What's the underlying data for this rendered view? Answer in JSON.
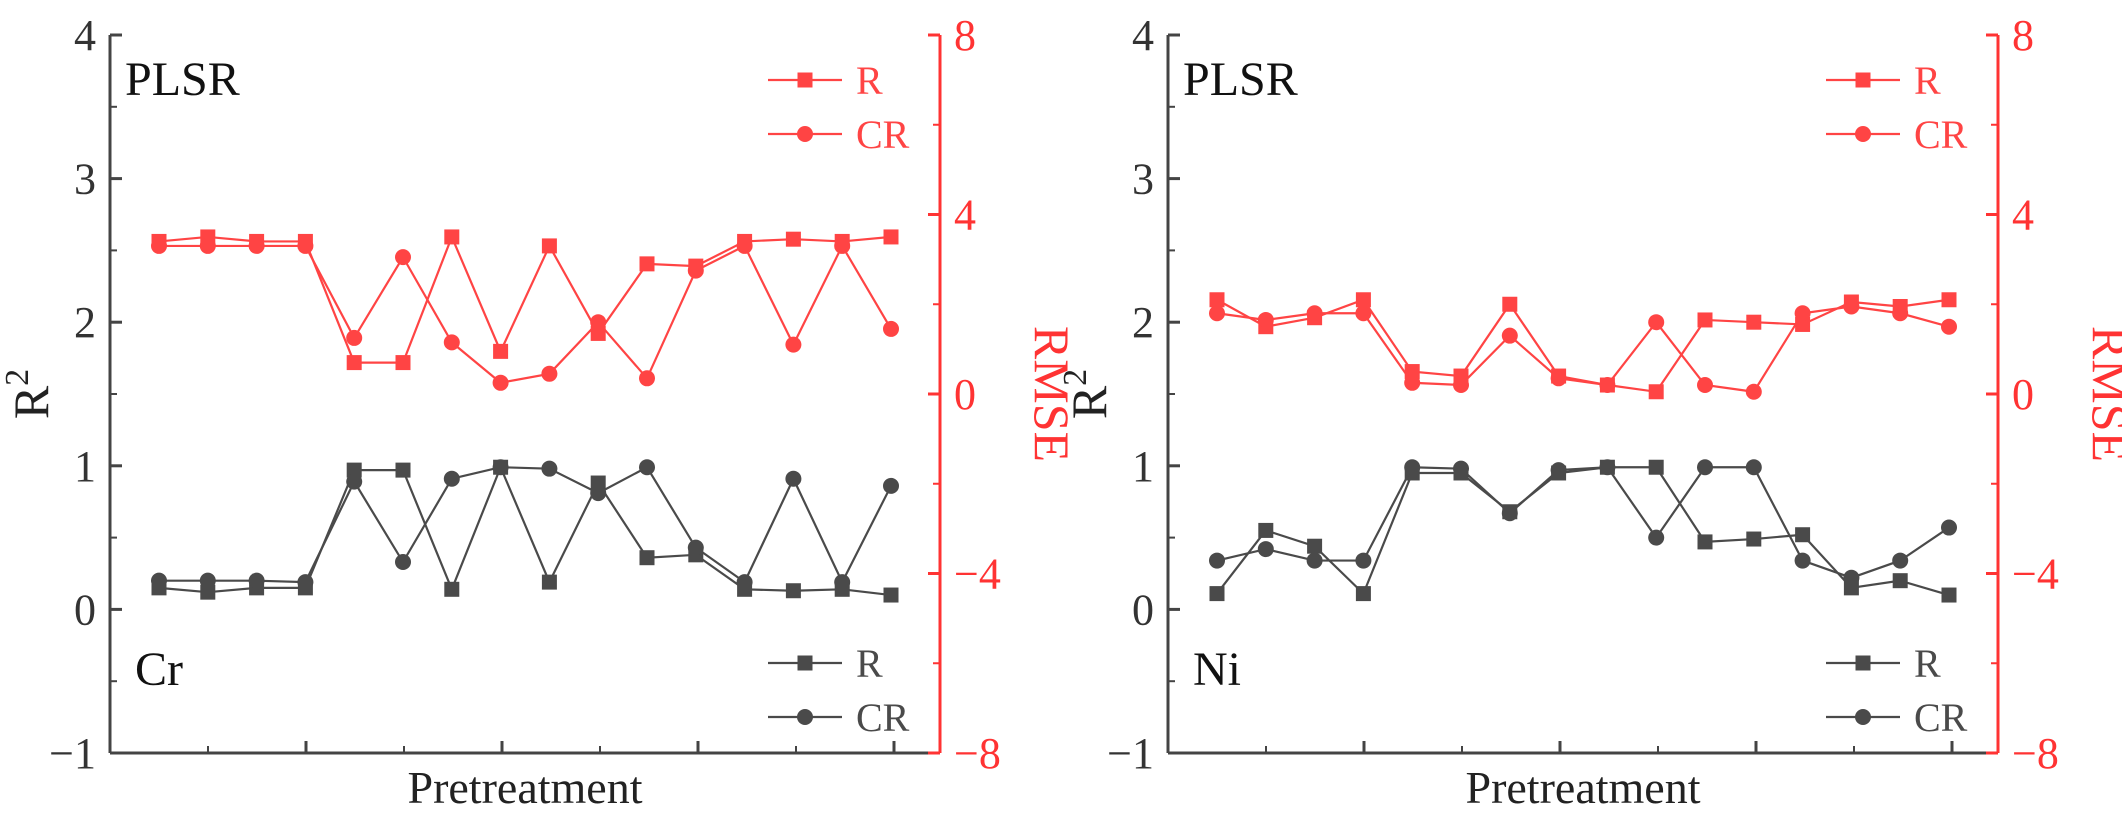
{
  "colors": {
    "black": "#4a4a4a",
    "red": "#ff4444",
    "axis_left": "#444444",
    "axis_right": "#ff3333"
  },
  "chart_data": [
    {
      "type": "line",
      "panel": "left",
      "title": "PLSR",
      "element": "Cr",
      "xlabel": "Pretreatment",
      "ylabel_left": "R",
      "ylabel_left_superscript": "2",
      "ylabel_right": "RMSE",
      "ylim_left": [
        -1,
        4
      ],
      "ylim_right": [
        -8,
        8
      ],
      "yticks_left": [
        "−1",
        "0",
        "1",
        "2",
        "3",
        "4"
      ],
      "yticks_right": [
        "−8",
        "−4",
        "0",
        "4",
        "8"
      ],
      "legend_top": {
        "series": [
          "R",
          "CR"
        ],
        "color": "red",
        "position": "top-right"
      },
      "legend_bottom": {
        "series": [
          "R",
          "CR"
        ],
        "color": "black",
        "position": "bottom-right"
      },
      "series": [
        {
          "name": "R",
          "axis": "left",
          "color": "black",
          "marker": "square",
          "values": [
            0.15,
            0.12,
            0.15,
            0.15,
            0.97,
            0.97,
            0.14,
            0.99,
            0.19,
            0.88,
            0.36,
            0.38,
            0.14,
            0.13,
            0.14,
            0.1
          ]
        },
        {
          "name": "CR",
          "axis": "left",
          "color": "black",
          "marker": "circle",
          "values": [
            0.2,
            0.2,
            0.2,
            0.19,
            0.89,
            0.33,
            0.91,
            0.99,
            0.98,
            0.81,
            0.99,
            0.43,
            0.19,
            0.91,
            0.19,
            0.86
          ]
        },
        {
          "name": "R",
          "axis": "right",
          "color": "red",
          "marker": "square",
          "values": [
            3.4,
            3.5,
            3.4,
            3.4,
            0.7,
            0.7,
            3.5,
            0.95,
            3.3,
            1.35,
            2.9,
            2.85,
            3.4,
            3.45,
            3.4,
            3.5
          ]
        },
        {
          "name": "CR",
          "axis": "right",
          "color": "red",
          "marker": "circle",
          "values": [
            3.3,
            3.3,
            3.3,
            3.3,
            1.25,
            3.05,
            1.15,
            0.25,
            0.45,
            1.6,
            0.35,
            2.75,
            3.3,
            1.1,
            3.3,
            1.45
          ]
        }
      ]
    },
    {
      "type": "line",
      "panel": "right",
      "title": "PLSR",
      "element": "Ni",
      "xlabel": "Pretreatment",
      "ylabel_left": "R",
      "ylabel_left_superscript": "2",
      "ylabel_right": "RMSE",
      "ylim_left": [
        -1,
        4
      ],
      "ylim_right": [
        -8,
        8
      ],
      "yticks_left": [
        "−1",
        "0",
        "1",
        "2",
        "3",
        "4"
      ],
      "yticks_right": [
        "−8",
        "−4",
        "0",
        "4",
        "8"
      ],
      "legend_top": {
        "series": [
          "R",
          "CR"
        ],
        "color": "red",
        "position": "top-right"
      },
      "legend_bottom": {
        "series": [
          "R",
          "CR"
        ],
        "color": "black",
        "position": "bottom-right"
      },
      "series": [
        {
          "name": "R",
          "axis": "left",
          "color": "black",
          "marker": "square",
          "values": [
            0.11,
            0.55,
            0.44,
            0.11,
            0.95,
            0.95,
            0.68,
            0.95,
            0.99,
            0.99,
            0.47,
            0.49,
            0.52,
            0.15,
            0.2,
            0.1
          ]
        },
        {
          "name": "CR",
          "axis": "left",
          "color": "black",
          "marker": "circle",
          "values": [
            0.34,
            0.42,
            0.34,
            0.34,
            0.99,
            0.98,
            0.67,
            0.97,
            0.99,
            0.5,
            0.99,
            0.99,
            0.34,
            0.22,
            0.34,
            0.57
          ]
        },
        {
          "name": "R",
          "axis": "right",
          "color": "red",
          "marker": "square",
          "values": [
            2.1,
            1.5,
            1.7,
            2.1,
            0.5,
            0.4,
            2.0,
            0.4,
            0.2,
            0.05,
            1.65,
            1.6,
            1.55,
            2.05,
            1.95,
            2.1
          ]
        },
        {
          "name": "CR",
          "axis": "right",
          "color": "red",
          "marker": "circle",
          "values": [
            1.8,
            1.65,
            1.8,
            1.8,
            0.25,
            0.2,
            1.3,
            0.35,
            0.2,
            1.6,
            0.2,
            0.05,
            1.8,
            1.95,
            1.8,
            1.5
          ]
        }
      ]
    }
  ]
}
